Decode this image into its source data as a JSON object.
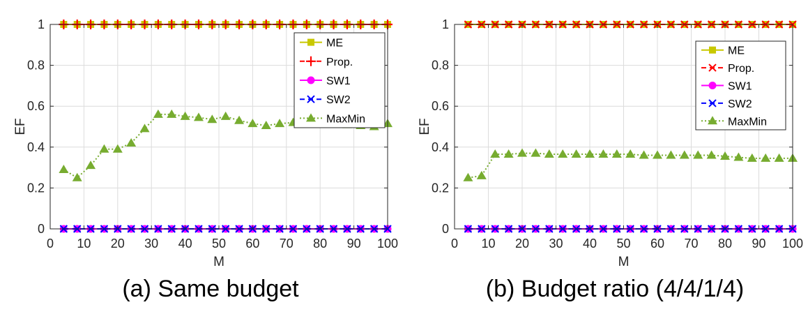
{
  "chart_data": [
    {
      "type": "line",
      "caption": "(a) Same budget",
      "xlabel": "M",
      "ylabel": "EF",
      "xlim": [
        0,
        100
      ],
      "ylim": [
        0,
        1
      ],
      "xticks": [
        0,
        10,
        20,
        30,
        40,
        50,
        60,
        70,
        80,
        90,
        100
      ],
      "yticks": [
        0,
        0.2,
        0.4,
        0.6,
        0.8,
        1
      ],
      "ytick_labels": [
        "0",
        "0.2",
        "0.4",
        "0.6",
        "0.8",
        "1"
      ],
      "grid": true,
      "legend_position": "top-right",
      "x": [
        4,
        8,
        12,
        16,
        20,
        24,
        28,
        32,
        36,
        40,
        44,
        48,
        52,
        56,
        60,
        64,
        68,
        72,
        76,
        80,
        84,
        88,
        92,
        96,
        100
      ],
      "series": [
        {
          "name": "ME",
          "color": "#c8c800",
          "marker": "square",
          "dash": "solid",
          "values": [
            1,
            1,
            1,
            1,
            1,
            1,
            1,
            1,
            1,
            1,
            1,
            1,
            1,
            1,
            1,
            1,
            1,
            1,
            1,
            1,
            1,
            1,
            1,
            1,
            1
          ]
        },
        {
          "name": "Prop.",
          "color": "#ff0000",
          "marker": "plus",
          "dash": "dashed",
          "values": [
            1,
            1,
            1,
            1,
            1,
            1,
            1,
            1,
            1,
            1,
            1,
            1,
            1,
            1,
            1,
            1,
            1,
            1,
            1,
            1,
            1,
            1,
            1,
            1,
            1
          ]
        },
        {
          "name": "SW1",
          "color": "#ff00ff",
          "marker": "circle",
          "dash": "solid",
          "values": [
            0,
            0,
            0,
            0,
            0,
            0,
            0,
            0,
            0,
            0,
            0,
            0,
            0,
            0,
            0,
            0,
            0,
            0,
            0,
            0,
            0,
            0,
            0,
            0,
            0
          ]
        },
        {
          "name": "SW2",
          "color": "#0000ff",
          "marker": "x",
          "dash": "dashed",
          "values": [
            0,
            0,
            0,
            0,
            0,
            0,
            0,
            0,
            0,
            0,
            0,
            0,
            0,
            0,
            0,
            0,
            0,
            0,
            0,
            0,
            0,
            0,
            0,
            0,
            0
          ]
        },
        {
          "name": "MaxMin",
          "color": "#77ac30",
          "marker": "triangle",
          "dash": "dotted",
          "values": [
            0.29,
            0.25,
            0.31,
            0.39,
            0.39,
            0.42,
            0.49,
            0.56,
            0.56,
            0.55,
            0.545,
            0.535,
            0.55,
            0.53,
            0.515,
            0.505,
            0.515,
            0.52,
            0.515,
            0.525,
            0.515,
            0.51,
            0.505,
            0.5,
            0.515
          ]
        }
      ]
    },
    {
      "type": "line",
      "caption": "(b) Budget ratio (4/4/1/4)",
      "xlabel": "M",
      "ylabel": "EF",
      "xlim": [
        0,
        100
      ],
      "ylim": [
        0,
        1
      ],
      "xticks": [
        0,
        10,
        20,
        30,
        40,
        50,
        60,
        70,
        80,
        90,
        100
      ],
      "yticks": [
        0,
        0.2,
        0.4,
        0.6,
        0.8,
        1
      ],
      "ytick_labels": [
        "0",
        "0.2",
        "0.4",
        "0.6",
        "0.8",
        "1"
      ],
      "grid": true,
      "legend_position": "top-right",
      "x": [
        4,
        8,
        12,
        16,
        20,
        24,
        28,
        32,
        36,
        40,
        44,
        48,
        52,
        56,
        60,
        64,
        68,
        72,
        76,
        80,
        84,
        88,
        92,
        96,
        100
      ],
      "series": [
        {
          "name": "ME",
          "color": "#c8c800",
          "marker": "square",
          "dash": "solid",
          "values": [
            1,
            1,
            1,
            1,
            1,
            1,
            1,
            1,
            1,
            1,
            1,
            1,
            1,
            1,
            1,
            1,
            1,
            1,
            1,
            1,
            1,
            1,
            1,
            1,
            1
          ]
        },
        {
          "name": "Prop.",
          "color": "#ff0000",
          "marker": "x",
          "dash": "dashed",
          "values": [
            1,
            1,
            1,
            1,
            1,
            1,
            1,
            1,
            1,
            1,
            1,
            1,
            1,
            1,
            1,
            1,
            1,
            1,
            1,
            1,
            1,
            1,
            1,
            1,
            1
          ]
        },
        {
          "name": "SW1",
          "color": "#ff00ff",
          "marker": "circle",
          "dash": "solid",
          "values": [
            0,
            0,
            0,
            0,
            0,
            0,
            0,
            0,
            0,
            0,
            0,
            0,
            0,
            0,
            0,
            0,
            0,
            0,
            0,
            0,
            0,
            0,
            0,
            0,
            0
          ]
        },
        {
          "name": "SW2",
          "color": "#0000ff",
          "marker": "x",
          "dash": "dashed",
          "values": [
            0,
            0,
            0,
            0,
            0,
            0,
            0,
            0,
            0,
            0,
            0,
            0,
            0,
            0,
            0,
            0,
            0,
            0,
            0,
            0,
            0,
            0,
            0,
            0,
            0
          ]
        },
        {
          "name": "MaxMin",
          "color": "#77ac30",
          "marker": "triangle",
          "dash": "dotted",
          "values": [
            0.25,
            0.26,
            0.365,
            0.365,
            0.37,
            0.37,
            0.365,
            0.365,
            0.365,
            0.365,
            0.365,
            0.365,
            0.365,
            0.36,
            0.36,
            0.36,
            0.36,
            0.36,
            0.36,
            0.355,
            0.35,
            0.345,
            0.345,
            0.345,
            0.345
          ]
        }
      ]
    }
  ]
}
